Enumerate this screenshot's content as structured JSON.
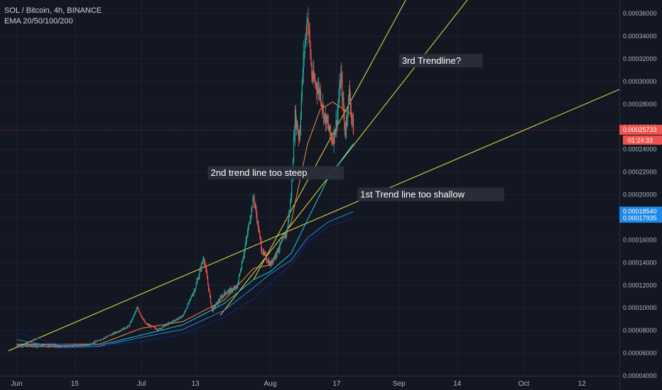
{
  "header": {
    "title": "SOL / Bitcoin, 4h, BINANCE",
    "indicator": "EMA 20/50/100/200"
  },
  "colors": {
    "background": "#131722",
    "grid": "#1e2230",
    "up": "#26a69a",
    "down": "#ef5350",
    "trendline": "#e8e04a",
    "ema20": "#ef8f4a",
    "ema50": "#26c6da",
    "ema100": "#1e88e5",
    "ema200": "#1a237e",
    "price_tag": "#ef5350",
    "ema_tag": "#1e88e5"
  },
  "chart_data": {
    "type": "candlestick",
    "title": "SOL / Bitcoin, 4h, BINANCE",
    "y_axis": {
      "min": 4e-05,
      "max": 0.000372,
      "ticks": [
        "0.00004000",
        "0.00006000",
        "0.00008000",
        "0.00010000",
        "0.00012000",
        "0.00014000",
        "0.00016000",
        "0.00018000",
        "0.00020000",
        "0.00022000",
        "0.00024000",
        "0.00026000",
        "0.00028000",
        "0.00030000",
        "0.00032000",
        "0.00034000",
        "0.00036000"
      ],
      "tick_values": [
        4e-05,
        6e-05,
        8e-05,
        0.0001,
        0.00012,
        0.00014,
        0.00016,
        0.00018,
        0.0002,
        0.00022,
        0.00024,
        0.00026,
        0.00028,
        0.0003,
        0.00032,
        0.00034,
        0.00036
      ]
    },
    "x_axis": {
      "labels": [
        "Jun",
        "15",
        "Jul",
        "13",
        "Aug",
        "17",
        "Sep",
        "14",
        "Oct",
        "12"
      ],
      "label_days": [
        0,
        14,
        30,
        43,
        61,
        77,
        92,
        106,
        122,
        136
      ],
      "range_days": [
        -4,
        145
      ]
    },
    "price_series": {
      "name": "SOLBTC",
      "points": [
        [
          0,
          6.6e-05
        ],
        [
          10,
          6.6e-05
        ],
        [
          17,
          6.7e-05
        ],
        [
          22,
          7.5e-05
        ],
        [
          27,
          8.4e-05
        ],
        [
          29,
          0.0001
        ],
        [
          31,
          8.6e-05
        ],
        [
          34,
          8.1e-05
        ],
        [
          36,
          8.5e-05
        ],
        [
          40,
          9.3e-05
        ],
        [
          43,
          0.000118
        ],
        [
          45,
          0.000145
        ],
        [
          47,
          9.8e-05
        ],
        [
          50,
          0.000113
        ],
        [
          53,
          0.000118
        ],
        [
          55,
          0.000155
        ],
        [
          57,
          0.000198
        ],
        [
          59,
          0.00015
        ],
        [
          61,
          0.000138
        ],
        [
          63,
          0.000152
        ],
        [
          65,
          0.000167
        ],
        [
          66,
          0.000198
        ],
        [
          67,
          0.00027
        ],
        [
          68,
          0.00025
        ],
        [
          69,
          0.00032
        ],
        [
          70,
          0.00036
        ],
        [
          71,
          0.000305
        ],
        [
          73,
          0.00029
        ],
        [
          74,
          0.00027
        ],
        [
          76,
          0.000248
        ],
        [
          77,
          0.000265
        ],
        [
          78,
          0.000305
        ],
        [
          79,
          0.000255
        ],
        [
          80,
          0.00029
        ],
        [
          81,
          0.000257
        ]
      ],
      "last": "0.00025733",
      "countdown": "01:24:33"
    },
    "ema": [
      {
        "name": "EMA 20",
        "points": [
          [
            0,
            6.8e-05
          ],
          [
            20,
            6.8e-05
          ],
          [
            30,
            8.2e-05
          ],
          [
            40,
            8.8e-05
          ],
          [
            50,
            0.000107
          ],
          [
            57,
            0.000135
          ],
          [
            61,
            0.000138
          ],
          [
            66,
            0.000175
          ],
          [
            70,
            0.000245
          ],
          [
            73,
            0.000275
          ],
          [
            76,
            0.000282
          ],
          [
            81,
            0.00027
          ]
        ]
      },
      {
        "name": "EMA 50",
        "points": [
          [
            0,
            6.7e-05
          ],
          [
            20,
            6.7e-05
          ],
          [
            30,
            7.6e-05
          ],
          [
            40,
            8.5e-05
          ],
          [
            50,
            0.000104
          ],
          [
            57,
            0.000125
          ],
          [
            61,
            0.000132
          ],
          [
            66,
            0.000148
          ],
          [
            70,
            0.000178
          ],
          [
            75,
            0.000215
          ],
          [
            81,
            0.000245
          ]
        ]
      },
      {
        "name": "EMA 100",
        "points": [
          [
            0,
            7.2e-05
          ],
          [
            10,
            6.5e-05
          ],
          [
            20,
            6.6e-05
          ],
          [
            30,
            7.4e-05
          ],
          [
            40,
            8.1e-05
          ],
          [
            50,
            9.8e-05
          ],
          [
            57,
            0.000118
          ],
          [
            61,
            0.00013
          ],
          [
            66,
            0.000142
          ],
          [
            70,
            0.000162
          ],
          [
            75,
            0.000176
          ],
          [
            81,
            0.000185
          ]
        ]
      },
      {
        "name": "EMA 200",
        "points": [
          [
            0,
            7.8e-05
          ],
          [
            10,
            6.8e-05
          ],
          [
            20,
            6.7e-05
          ],
          [
            30,
            7e-05
          ],
          [
            40,
            7.7e-05
          ],
          [
            50,
            9.2e-05
          ],
          [
            57,
            0.000108
          ],
          [
            61,
            0.000122
          ],
          [
            66,
            0.000138
          ],
          [
            70,
            0.000158
          ],
          [
            75,
            0.000172
          ],
          [
            81,
            0.000179
          ]
        ]
      }
    ],
    "ema_tags": [
      "0.00018540",
      "0.00017935"
    ],
    "trendlines": [
      {
        "points": [
          [
            -2,
            6.2e-05
          ],
          [
            145,
            0.000293
          ]
        ]
      },
      {
        "points": [
          [
            49,
            9.35e-05
          ],
          [
            140,
            0.00052
          ]
        ]
      },
      {
        "points": [
          [
            57,
            0.000125
          ],
          [
            120,
            0.00055
          ]
        ]
      }
    ],
    "annotations": [
      "3rd Trendline?",
      "2nd trend line too steep",
      "1st Trend line too shallow"
    ],
    "note_anchors": [
      [
        92,
        0.000318
      ],
      [
        46,
        0.000219
      ],
      [
        82,
        0.0002
      ]
    ]
  }
}
